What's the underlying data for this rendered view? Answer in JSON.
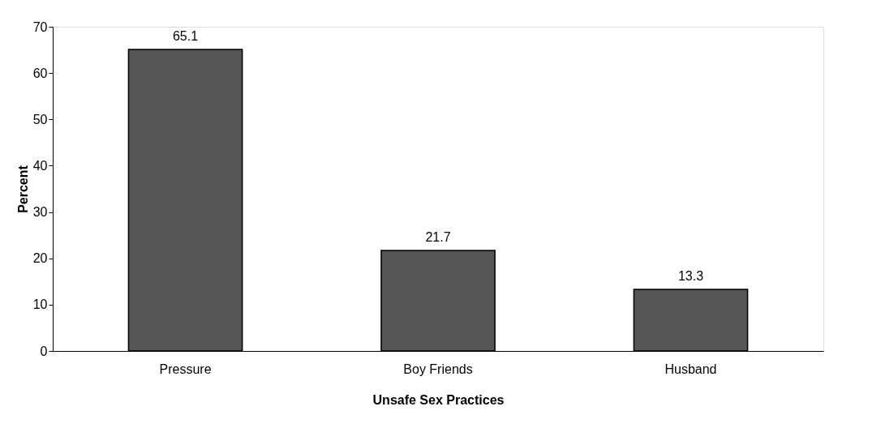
{
  "chart_data": {
    "type": "bar",
    "xlabel": "Unsafe Sex Practices",
    "ylabel": "Percent",
    "categories": [
      "Pressure",
      "Boy Friends",
      "Husband"
    ],
    "values": [
      65.1,
      21.7,
      13.3
    ],
    "color": "#555555",
    "ylim": [
      0,
      70
    ],
    "yticks": [
      0,
      10,
      20,
      30,
      40,
      50,
      60,
      70
    ],
    "grid": false,
    "data_labels": true
  }
}
